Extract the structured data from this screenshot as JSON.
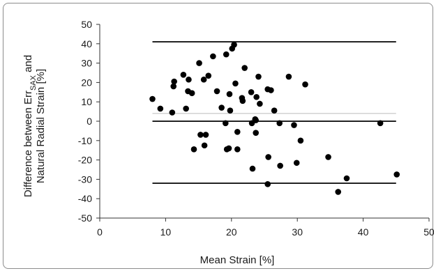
{
  "chart_data": {
    "type": "scatter",
    "xlabel": "Mean Strain  [%]",
    "ylabel_line1_prefix": "Difference between Err",
    "ylabel_line1_sub": "SAX",
    "ylabel_line1_suffix": " and",
    "ylabel_line2": "Natural Radial Strain [%]",
    "xlim": [
      0,
      50
    ],
    "ylim": [
      -50,
      50
    ],
    "xticks": [
      0,
      10,
      20,
      30,
      40,
      50
    ],
    "yticks": [
      -50,
      -40,
      -30,
      -20,
      -10,
      0,
      10,
      20,
      30,
      40,
      50
    ],
    "grid": false,
    "legend": "none",
    "reference_lines": [
      {
        "name": "upper limit",
        "y": 41,
        "x_range": [
          8,
          45
        ],
        "color": "#222222"
      },
      {
        "name": "mean",
        "y": 0,
        "x_range": [
          8,
          45
        ],
        "color": "#222222"
      },
      {
        "name": "lower limit",
        "y": -32,
        "x_range": [
          8,
          45
        ],
        "color": "#222222"
      },
      {
        "name": "light reference",
        "y": 4,
        "x_range": [
          8,
          45
        ],
        "color": "#bbbbbb"
      }
    ],
    "points": [
      {
        "x": 8,
        "y": 11.5
      },
      {
        "x": 9.2,
        "y": 6.5
      },
      {
        "x": 11.2,
        "y": 18
      },
      {
        "x": 11.3,
        "y": 20.5
      },
      {
        "x": 11,
        "y": 4.5
      },
      {
        "x": 12.7,
        "y": 24
      },
      {
        "x": 13.1,
        "y": 6.5
      },
      {
        "x": 13.4,
        "y": 15.5
      },
      {
        "x": 13.5,
        "y": 21.5
      },
      {
        "x": 14,
        "y": 14.5
      },
      {
        "x": 14.3,
        "y": -14.5
      },
      {
        "x": 15.1,
        "y": 30
      },
      {
        "x": 15.3,
        "y": -7
      },
      {
        "x": 15.9,
        "y": -12.5
      },
      {
        "x": 15.8,
        "y": 21.5
      },
      {
        "x": 16.1,
        "y": -7
      },
      {
        "x": 16.5,
        "y": 23.5
      },
      {
        "x": 17.2,
        "y": 33.5
      },
      {
        "x": 17.8,
        "y": 15.5
      },
      {
        "x": 18.5,
        "y": 7
      },
      {
        "x": 19.1,
        "y": -1
      },
      {
        "x": 19.2,
        "y": 34.5
      },
      {
        "x": 19.3,
        "y": -14.5
      },
      {
        "x": 19.6,
        "y": -14
      },
      {
        "x": 19.7,
        "y": 14
      },
      {
        "x": 19.8,
        "y": 5.5
      },
      {
        "x": 20.1,
        "y": 37.5
      },
      {
        "x": 20.4,
        "y": 39.5
      },
      {
        "x": 20.6,
        "y": 19.5
      },
      {
        "x": 20.9,
        "y": -5.5
      },
      {
        "x": 20.9,
        "y": -14.5
      },
      {
        "x": 21.6,
        "y": 12
      },
      {
        "x": 21.7,
        "y": 10.5
      },
      {
        "x": 22,
        "y": 27.5
      },
      {
        "x": 23,
        "y": 15
      },
      {
        "x": 23.1,
        "y": -1
      },
      {
        "x": 23.2,
        "y": -24.5
      },
      {
        "x": 23.6,
        "y": 1
      },
      {
        "x": 23.7,
        "y": 0.5
      },
      {
        "x": 23.8,
        "y": 12.5
      },
      {
        "x": 23.7,
        "y": -6
      },
      {
        "x": 24.1,
        "y": 23
      },
      {
        "x": 24.3,
        "y": 9
      },
      {
        "x": 25.5,
        "y": -32.5
      },
      {
        "x": 25.6,
        "y": -18.5
      },
      {
        "x": 25.5,
        "y": 16.5
      },
      {
        "x": 26,
        "y": 16
      },
      {
        "x": 26.5,
        "y": 5.5
      },
      {
        "x": 27.3,
        "y": -1
      },
      {
        "x": 27.4,
        "y": -23
      },
      {
        "x": 28.7,
        "y": 23
      },
      {
        "x": 29.5,
        "y": -2
      },
      {
        "x": 29.9,
        "y": -21.5
      },
      {
        "x": 30.5,
        "y": -10
      },
      {
        "x": 31.2,
        "y": 19
      },
      {
        "x": 34.7,
        "y": -18.5
      },
      {
        "x": 36.2,
        "y": -36.5
      },
      {
        "x": 37.5,
        "y": -29.5
      },
      {
        "x": 42.6,
        "y": -1
      },
      {
        "x": 45.1,
        "y": -27.5
      }
    ]
  }
}
